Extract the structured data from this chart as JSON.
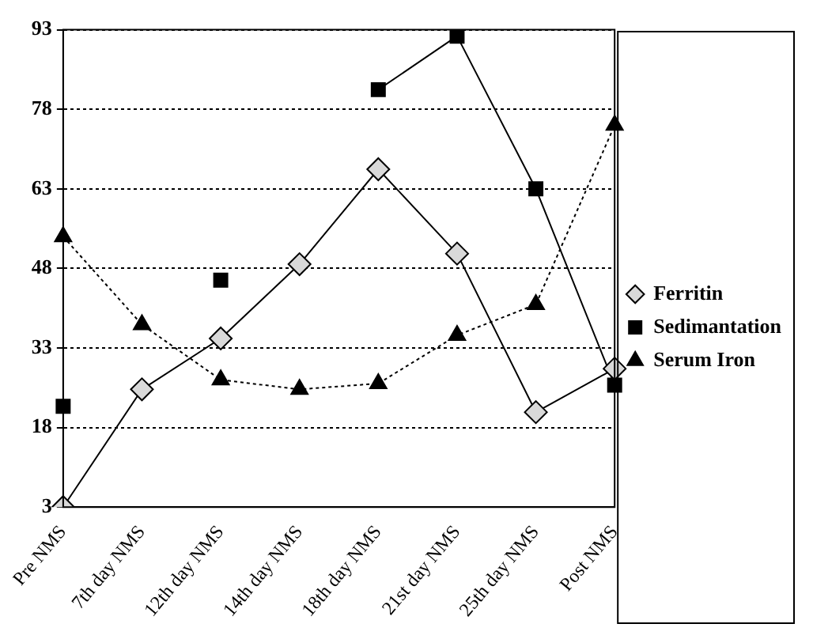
{
  "chart_data": {
    "type": "line",
    "categories": [
      "Pre NMS",
      "7th day NMS",
      "12th day NMS",
      "14th day NMS",
      "18th day NMS",
      "21st day NMS",
      "25th day NMS",
      "Post NMS"
    ],
    "series": [
      {
        "name": "Ferritin",
        "color": "#d9d9d9",
        "marker": "diamond",
        "values": [
          3,
          25.2,
          34.8,
          48.8,
          66.7,
          50.8,
          20.9,
          29.1
        ]
      },
      {
        "name": "Sedimantation",
        "color": "#000000",
        "marker": "square",
        "values": [
          22,
          null,
          45.8,
          null,
          81.7,
          91.8,
          63,
          26
        ]
      },
      {
        "name": "Serum Iron",
        "color": "#000000",
        "marker": "triangle",
        "line_style": "dotted",
        "values": [
          54,
          37.4,
          27,
          25.2,
          26.3,
          35.4,
          41.2,
          75
        ]
      }
    ],
    "ylim": [
      3,
      93
    ],
    "yticks": [
      3,
      18,
      33,
      48,
      63,
      78,
      93
    ],
    "grid": "y",
    "legend": "right"
  }
}
